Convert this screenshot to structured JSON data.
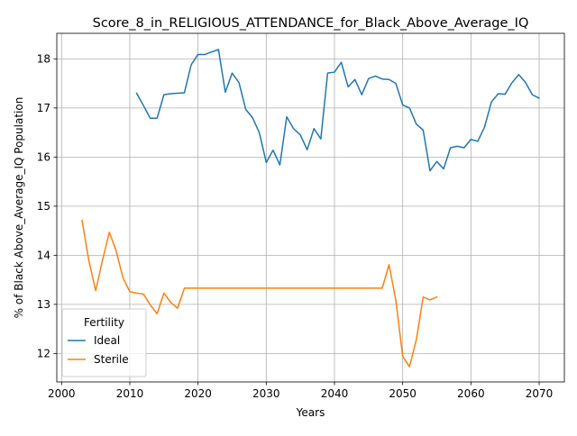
{
  "chart_data": {
    "type": "line",
    "title": "Score_8_in_RELIGIOUS_ATTENDANCE_for_Black_Above_Average_IQ",
    "xlabel": "Years",
    "ylabel": "% of Black Above_Average_IQ Population",
    "xlim": [
      1999.3,
      2073.7
    ],
    "ylim": [
      11.42,
      18.52
    ],
    "xticks": [
      2000,
      2010,
      2020,
      2030,
      2040,
      2050,
      2060,
      2070
    ],
    "yticks": [
      12,
      13,
      14,
      15,
      16,
      17,
      18
    ],
    "grid": true,
    "legend": {
      "title": "Fertility",
      "placement": "lower-left"
    },
    "series": [
      {
        "name": "Ideal",
        "color": "#1f77b4",
        "x": [
          2011,
          2012,
          2013,
          2014,
          2015,
          2016,
          2017,
          2018,
          2019,
          2020,
          2021,
          2022,
          2023,
          2024,
          2025,
          2026,
          2027,
          2028,
          2029,
          2030,
          2031,
          2032,
          2033,
          2034,
          2035,
          2036,
          2037,
          2038,
          2039,
          2040,
          2041,
          2042,
          2043,
          2044,
          2045,
          2046,
          2047,
          2048,
          2049,
          2050,
          2051,
          2052,
          2053,
          2054,
          2055,
          2056,
          2057,
          2058,
          2059,
          2060,
          2061,
          2062,
          2063,
          2064,
          2065,
          2066,
          2067,
          2068,
          2069,
          2070
        ],
        "y": [
          17.3,
          17.05,
          16.79,
          16.79,
          17.27,
          17.29,
          17.3,
          17.31,
          17.88,
          18.09,
          18.09,
          18.14,
          18.19,
          17.32,
          17.71,
          17.52,
          16.97,
          16.8,
          16.49,
          15.89,
          16.14,
          15.84,
          16.82,
          16.58,
          16.45,
          16.15,
          16.58,
          16.37,
          17.71,
          17.73,
          17.93,
          17.43,
          17.58,
          17.27,
          17.6,
          17.65,
          17.59,
          17.58,
          17.5,
          17.06,
          17.0,
          16.67,
          16.55,
          15.72,
          15.91,
          15.76,
          16.19,
          16.22,
          16.19,
          16.36,
          16.32,
          16.61,
          17.12,
          17.29,
          17.28,
          17.51,
          17.68,
          17.52,
          17.27,
          17.2
        ]
      },
      {
        "name": "Sterile",
        "color": "#ff7f0e",
        "x": [
          2003,
          2004,
          2005,
          2006,
          2007,
          2008,
          2009,
          2010,
          2011,
          2012,
          2013,
          2014,
          2015,
          2016,
          2017,
          2018,
          2019,
          2020,
          2021,
          2022,
          2023,
          2024,
          2025,
          2026,
          2027,
          2028,
          2029,
          2030,
          2031,
          2032,
          2033,
          2034,
          2035,
          2036,
          2037,
          2038,
          2039,
          2040,
          2041,
          2042,
          2043,
          2044,
          2045,
          2046,
          2047,
          2048,
          2049,
          2050,
          2051,
          2052,
          2053,
          2054,
          2055
        ],
        "y": [
          14.71,
          13.89,
          13.28,
          13.9,
          14.47,
          14.09,
          13.54,
          13.26,
          13.23,
          13.21,
          12.99,
          12.81,
          13.23,
          13.04,
          12.92,
          13.33,
          13.33,
          13.33,
          13.33,
          13.33,
          13.33,
          13.33,
          13.33,
          13.33,
          13.33,
          13.33,
          13.33,
          13.33,
          13.33,
          13.33,
          13.33,
          13.33,
          13.33,
          13.33,
          13.33,
          13.33,
          13.33,
          13.33,
          13.33,
          13.33,
          13.33,
          13.33,
          13.33,
          13.33,
          13.33,
          13.81,
          13.08,
          11.94,
          11.73,
          12.28,
          13.15,
          13.09,
          13.15
        ]
      }
    ]
  }
}
